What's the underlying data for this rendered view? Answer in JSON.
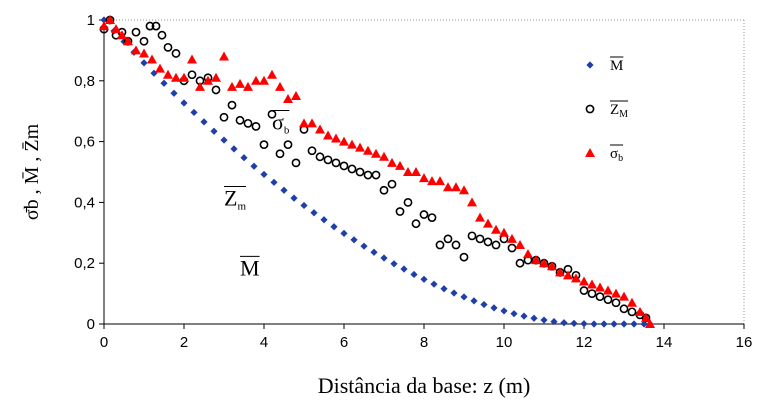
{
  "chart_data": {
    "type": "scatter",
    "xlabel": "Distância da base: z (m)",
    "ylabel": "σ̄b , M̄ , Z̄m",
    "xlim": [
      0,
      16
    ],
    "ylim": [
      0,
      1
    ],
    "xticks": [
      "0",
      "2",
      "4",
      "6",
      "8",
      "10",
      "12",
      "14",
      "16"
    ],
    "yticks": [
      "0",
      "0,2",
      "0,4",
      "0,6",
      "0,8",
      "1"
    ],
    "grid": false,
    "legend_position": "right",
    "legend": [
      {
        "label": "M",
        "marker": "diamond",
        "color": "#1f3fa8"
      },
      {
        "label": "Z",
        "sub": "M",
        "marker": "circle-open",
        "color": "#000000"
      },
      {
        "label": "σ",
        "sub": "b",
        "marker": "triangle",
        "color": "#ff0000"
      }
    ],
    "annotations": [
      {
        "text": "σ",
        "sub": "b",
        "x": 4.2,
        "y": 0.64
      },
      {
        "text": "Z",
        "sub": "m",
        "x": 3.0,
        "y": 0.39
      },
      {
        "text": "M",
        "sub": "",
        "x": 3.4,
        "y": 0.16
      }
    ],
    "series": [
      {
        "name": "M",
        "marker": "diamond",
        "color": "#1f3fa8",
        "x": [
          0.0,
          0.25,
          0.5,
          0.75,
          1.0,
          1.25,
          1.5,
          1.75,
          2.0,
          2.25,
          2.5,
          2.75,
          3.0,
          3.25,
          3.5,
          3.75,
          4.0,
          4.25,
          4.5,
          4.75,
          5.0,
          5.25,
          5.5,
          5.75,
          6.0,
          6.25,
          6.5,
          6.75,
          7.0,
          7.25,
          7.5,
          7.75,
          8.0,
          8.25,
          8.5,
          8.75,
          9.0,
          9.25,
          9.5,
          9.75,
          10.0,
          10.25,
          10.5,
          10.75,
          11.0,
          11.25,
          11.5,
          11.75,
          12.0,
          12.25,
          12.5,
          12.75,
          13.0,
          13.25,
          13.5,
          13.65
        ],
        "y": [
          1.0,
          0.964,
          0.929,
          0.894,
          0.859,
          0.825,
          0.792,
          0.759,
          0.727,
          0.696,
          0.665,
          0.634,
          0.605,
          0.576,
          0.547,
          0.519,
          0.492,
          0.466,
          0.44,
          0.414,
          0.39,
          0.366,
          0.343,
          0.32,
          0.298,
          0.277,
          0.256,
          0.236,
          0.217,
          0.198,
          0.181,
          0.163,
          0.147,
          0.131,
          0.116,
          0.102,
          0.089,
          0.076,
          0.064,
          0.053,
          0.043,
          0.034,
          0.026,
          0.019,
          0.013,
          0.008,
          0.004,
          0.002,
          0.001,
          0.0,
          0.0,
          0.0,
          0.0,
          0.0,
          0.0,
          0.0
        ]
      },
      {
        "name": "Z M",
        "marker": "circle-open",
        "color": "#000000",
        "x": [
          0.0,
          0.15,
          0.3,
          0.45,
          0.6,
          0.8,
          1.0,
          1.15,
          1.3,
          1.45,
          1.6,
          1.8,
          2.0,
          2.2,
          2.4,
          2.6,
          2.8,
          3.0,
          3.2,
          3.4,
          3.6,
          3.8,
          4.0,
          4.2,
          4.4,
          4.6,
          4.8,
          5.0,
          5.2,
          5.4,
          5.6,
          5.8,
          6.0,
          6.2,
          6.4,
          6.6,
          6.8,
          7.0,
          7.2,
          7.4,
          7.6,
          7.8,
          8.0,
          8.2,
          8.4,
          8.6,
          8.8,
          9.0,
          9.2,
          9.4,
          9.6,
          9.8,
          10.0,
          10.2,
          10.4,
          10.6,
          10.8,
          11.0,
          11.2,
          11.4,
          11.6,
          11.8,
          12.0,
          12.2,
          12.4,
          12.6,
          12.8,
          13.0,
          13.2,
          13.4,
          13.55
        ],
        "y": [
          0.97,
          1.0,
          0.95,
          0.96,
          0.93,
          0.96,
          0.93,
          0.98,
          0.98,
          0.95,
          0.91,
          0.89,
          0.8,
          0.82,
          0.8,
          0.81,
          0.77,
          0.68,
          0.72,
          0.67,
          0.66,
          0.65,
          0.59,
          0.69,
          0.56,
          0.59,
          0.53,
          0.64,
          0.57,
          0.55,
          0.54,
          0.53,
          0.52,
          0.51,
          0.5,
          0.49,
          0.49,
          0.44,
          0.46,
          0.37,
          0.4,
          0.33,
          0.36,
          0.35,
          0.26,
          0.28,
          0.26,
          0.22,
          0.29,
          0.28,
          0.27,
          0.26,
          0.28,
          0.25,
          0.2,
          0.21,
          0.21,
          0.2,
          0.19,
          0.17,
          0.18,
          0.16,
          0.11,
          0.1,
          0.09,
          0.08,
          0.07,
          0.05,
          0.04,
          0.03,
          0.02
        ]
      },
      {
        "name": "σ b",
        "marker": "triangle",
        "color": "#ff0000",
        "x": [
          0.0,
          0.15,
          0.3,
          0.45,
          0.6,
          0.8,
          1.0,
          1.2,
          1.4,
          1.6,
          1.8,
          2.0,
          2.2,
          2.4,
          2.6,
          2.8,
          3.0,
          3.2,
          3.4,
          3.6,
          3.8,
          4.0,
          4.2,
          4.4,
          4.6,
          4.8,
          5.0,
          5.2,
          5.4,
          5.6,
          5.8,
          6.0,
          6.2,
          6.4,
          6.6,
          6.8,
          7.0,
          7.2,
          7.4,
          7.6,
          7.8,
          8.0,
          8.2,
          8.4,
          8.6,
          8.8,
          9.0,
          9.2,
          9.4,
          9.6,
          9.8,
          10.0,
          10.2,
          10.4,
          10.6,
          10.8,
          11.0,
          11.2,
          11.4,
          11.6,
          11.8,
          12.0,
          12.2,
          12.4,
          12.6,
          12.8,
          13.0,
          13.2,
          13.4,
          13.55,
          13.65
        ],
        "y": [
          0.98,
          1.0,
          0.97,
          0.95,
          0.93,
          0.9,
          0.89,
          0.87,
          0.84,
          0.82,
          0.81,
          0.81,
          0.87,
          0.78,
          0.8,
          0.81,
          0.88,
          0.78,
          0.79,
          0.78,
          0.8,
          0.8,
          0.82,
          0.78,
          0.74,
          0.75,
          0.66,
          0.66,
          0.64,
          0.62,
          0.61,
          0.6,
          0.59,
          0.58,
          0.57,
          0.56,
          0.55,
          0.53,
          0.52,
          0.5,
          0.5,
          0.48,
          0.47,
          0.47,
          0.45,
          0.45,
          0.44,
          0.4,
          0.35,
          0.33,
          0.31,
          0.3,
          0.28,
          0.26,
          0.23,
          0.21,
          0.2,
          0.19,
          0.17,
          0.16,
          0.15,
          0.14,
          0.13,
          0.12,
          0.11,
          0.1,
          0.09,
          0.07,
          0.04,
          0.02,
          0.0
        ]
      }
    ]
  }
}
